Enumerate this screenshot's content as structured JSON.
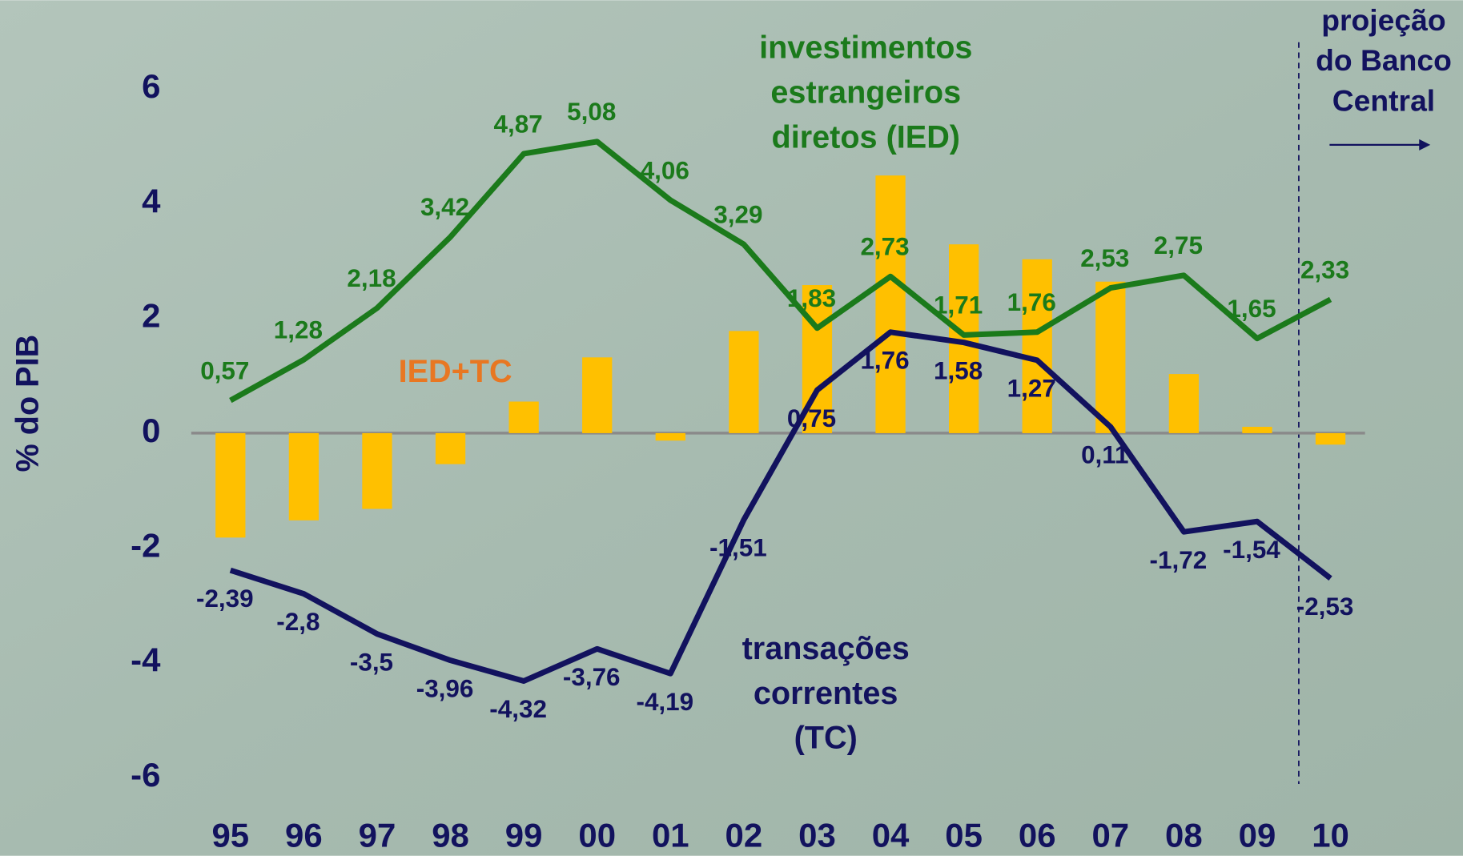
{
  "chart_data": {
    "type": "combo",
    "y_axis_label": "% do PIB",
    "categories": [
      "95",
      "96",
      "97",
      "98",
      "99",
      "00",
      "01",
      "02",
      "03",
      "04",
      "05",
      "06",
      "07",
      "08",
      "09",
      "10"
    ],
    "ylim": [
      -6,
      6
    ],
    "yticks": [
      -6,
      -4,
      -2,
      0,
      2,
      4,
      6
    ],
    "grid": false,
    "series": [
      {
        "name": [
          "IED+TC"
        ],
        "kind": "bar",
        "color": "#ffc000",
        "label_color": "#e87722",
        "values": [
          -1.82,
          -1.52,
          -1.32,
          -0.54,
          0.55,
          1.32,
          -0.13,
          1.78,
          2.58,
          4.49,
          3.29,
          3.03,
          2.64,
          1.03,
          0.11,
          -0.2
        ]
      },
      {
        "name": [
          "investimentos",
          "estrangeiros",
          "diretos (IED)"
        ],
        "kind": "line",
        "color": "#1b7a1b",
        "values": [
          0.57,
          1.28,
          2.18,
          3.42,
          4.87,
          5.08,
          4.06,
          3.29,
          1.83,
          2.73,
          1.71,
          1.76,
          2.53,
          2.75,
          1.65,
          2.33
        ],
        "value_labels": [
          "0,57",
          "1,28",
          "2,18",
          "3,42",
          "4,87",
          "5,08",
          "4,06",
          "3,29",
          "1,83",
          "2,73",
          "1,71",
          "1,76",
          "2,53",
          "2,75",
          "1,65",
          "2,33"
        ]
      },
      {
        "name": [
          "transações",
          "correntes",
          "(TC)"
        ],
        "kind": "line",
        "color": "#12125e",
        "values": [
          -2.39,
          -2.8,
          -3.5,
          -3.96,
          -4.32,
          -3.76,
          -4.19,
          -1.51,
          0.75,
          1.76,
          1.58,
          1.27,
          0.11,
          -1.72,
          -1.54,
          -2.53
        ],
        "value_labels": [
          "-2,39",
          "-2,8",
          "-3,5",
          "-3,96",
          "-4,32",
          "-3,76",
          "-4,19",
          "-1,51",
          "0,75",
          "1,76",
          "1,58",
          "1,27",
          "0,11",
          "-1,72",
          "-1,54",
          "-2,53"
        ]
      }
    ],
    "projection_note": [
      "projeção",
      "do Banco",
      "Central"
    ]
  }
}
